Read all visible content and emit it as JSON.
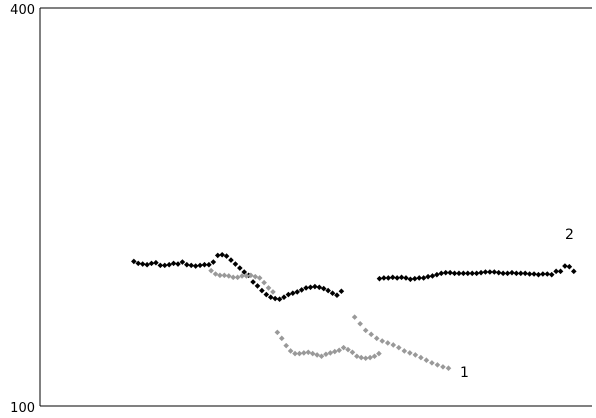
{
  "chart_data": {
    "type": "scatter",
    "title": "",
    "xlabel": "",
    "ylabel": "",
    "y_ticks": [
      "400",
      "100"
    ],
    "ylim": [
      100,
      400
    ],
    "xlim": [
      0,
      100
    ],
    "grid": false,
    "legend": "none",
    "series": [
      {
        "name": "2",
        "color": "#000000",
        "marker": "diamond",
        "points": [
          [
            17.0,
            209.0
          ],
          [
            17.8,
            207.5
          ],
          [
            18.6,
            207.0
          ],
          [
            19.4,
            206.5
          ],
          [
            20.2,
            207.5
          ],
          [
            21.0,
            208.0
          ],
          [
            21.8,
            206.0
          ],
          [
            22.6,
            206.0
          ],
          [
            23.4,
            206.5
          ],
          [
            24.2,
            207.5
          ],
          [
            25.0,
            207.0
          ],
          [
            25.8,
            208.5
          ],
          [
            26.6,
            206.5
          ],
          [
            27.4,
            206.0
          ],
          [
            28.2,
            205.5
          ],
          [
            29.0,
            206.0
          ],
          [
            29.8,
            206.5
          ],
          [
            30.6,
            206.5
          ],
          [
            31.4,
            208.5
          ],
          [
            32.2,
            213.5
          ],
          [
            33.0,
            214.0
          ],
          [
            33.8,
            213.0
          ],
          [
            34.6,
            210.0
          ],
          [
            35.4,
            207.0
          ],
          [
            36.2,
            204.0
          ],
          [
            37.0,
            201.0
          ],
          [
            37.8,
            198.5
          ],
          [
            38.6,
            193.5
          ],
          [
            39.4,
            190.5
          ],
          [
            40.2,
            187.0
          ],
          [
            41.0,
            184.0
          ],
          [
            41.8,
            182.0
          ],
          [
            42.6,
            181.0
          ],
          [
            43.4,
            180.5
          ],
          [
            44.2,
            182.0
          ],
          [
            45.0,
            184.0
          ],
          [
            45.8,
            185.0
          ],
          [
            46.6,
            186.0
          ],
          [
            47.4,
            187.5
          ],
          [
            48.2,
            189.0
          ],
          [
            49.0,
            189.5
          ],
          [
            49.8,
            190.0
          ],
          [
            50.6,
            189.5
          ],
          [
            51.4,
            188.5
          ],
          [
            52.2,
            187.0
          ],
          [
            53.0,
            185.0
          ],
          [
            53.8,
            183.5
          ],
          [
            54.6,
            186.5
          ],
          [
            61.5,
            196.0
          ],
          [
            62.3,
            196.5
          ],
          [
            63.1,
            196.5
          ],
          [
            63.9,
            197.0
          ],
          [
            64.7,
            196.5
          ],
          [
            65.5,
            197.0
          ],
          [
            66.3,
            196.5
          ],
          [
            67.1,
            195.5
          ],
          [
            67.9,
            196.0
          ],
          [
            68.7,
            196.5
          ],
          [
            69.5,
            196.5
          ],
          [
            70.3,
            197.5
          ],
          [
            71.1,
            198.0
          ],
          [
            71.9,
            199.0
          ],
          [
            72.7,
            200.0
          ],
          [
            73.5,
            200.5
          ],
          [
            74.3,
            200.5
          ],
          [
            75.1,
            200.0
          ],
          [
            75.9,
            200.0
          ],
          [
            76.7,
            200.0
          ],
          [
            77.5,
            200.0
          ],
          [
            78.3,
            200.0
          ],
          [
            79.1,
            200.0
          ],
          [
            79.9,
            200.5
          ],
          [
            80.7,
            201.0
          ],
          [
            81.5,
            201.0
          ],
          [
            82.3,
            201.0
          ],
          [
            83.1,
            200.5
          ],
          [
            83.9,
            200.0
          ],
          [
            84.7,
            200.0
          ],
          [
            85.5,
            200.5
          ],
          [
            86.3,
            200.0
          ],
          [
            87.1,
            200.0
          ],
          [
            87.9,
            200.0
          ],
          [
            88.7,
            199.5
          ],
          [
            89.5,
            199.5
          ],
          [
            90.3,
            199.0
          ],
          [
            91.1,
            199.5
          ],
          [
            91.9,
            199.5
          ],
          [
            92.7,
            199.0
          ],
          [
            93.5,
            201.5
          ],
          [
            94.3,
            201.5
          ],
          [
            95.1,
            205.5
          ],
          [
            95.9,
            205.0
          ],
          [
            96.7,
            201.5
          ]
        ]
      },
      {
        "name": "1",
        "color": "#999999",
        "marker": "diamond",
        "points": [
          [
            31.0,
            202.0
          ],
          [
            31.8,
            199.5
          ],
          [
            32.6,
            198.5
          ],
          [
            33.4,
            198.5
          ],
          [
            34.2,
            198.0
          ],
          [
            35.0,
            197.0
          ],
          [
            35.8,
            197.0
          ],
          [
            36.6,
            198.0
          ],
          [
            37.4,
            198.0
          ],
          [
            38.2,
            198.5
          ],
          [
            39.0,
            197.5
          ],
          [
            39.8,
            196.5
          ],
          [
            40.6,
            193.0
          ],
          [
            41.4,
            189.0
          ],
          [
            42.2,
            186.0
          ],
          [
            43.0,
            155.5
          ],
          [
            43.8,
            151.0
          ],
          [
            44.6,
            145.5
          ],
          [
            45.4,
            141.5
          ],
          [
            46.2,
            139.5
          ],
          [
            47.0,
            139.5
          ],
          [
            47.8,
            140.0
          ],
          [
            48.6,
            140.5
          ],
          [
            49.4,
            139.5
          ],
          [
            50.2,
            138.5
          ],
          [
            51.0,
            137.5
          ],
          [
            51.8,
            139.0
          ],
          [
            52.6,
            140.0
          ],
          [
            53.4,
            141.0
          ],
          [
            54.2,
            142.0
          ],
          [
            55.0,
            144.0
          ],
          [
            55.8,
            142.5
          ],
          [
            56.6,
            140.5
          ],
          [
            57.4,
            137.5
          ],
          [
            58.2,
            136.5
          ],
          [
            59.0,
            136.0
          ],
          [
            59.8,
            136.5
          ],
          [
            60.6,
            137.5
          ],
          [
            61.4,
            139.5
          ],
          [
            57.0,
            167.0
          ],
          [
            58.0,
            162.0
          ],
          [
            59.0,
            157.0
          ],
          [
            60.0,
            154.0
          ],
          [
            61.0,
            151.0
          ],
          [
            62.0,
            149.0
          ],
          [
            63.0,
            147.5
          ],
          [
            64.0,
            146.0
          ],
          [
            65.0,
            144.0
          ],
          [
            66.0,
            141.5
          ],
          [
            67.0,
            140.0
          ],
          [
            68.0,
            138.5
          ],
          [
            69.0,
            136.5
          ],
          [
            70.0,
            134.5
          ],
          [
            71.0,
            132.5
          ],
          [
            72.0,
            131.0
          ],
          [
            73.0,
            129.5
          ],
          [
            74.0,
            128.5
          ]
        ]
      }
    ],
    "annotations": [
      "2",
      "1"
    ]
  }
}
